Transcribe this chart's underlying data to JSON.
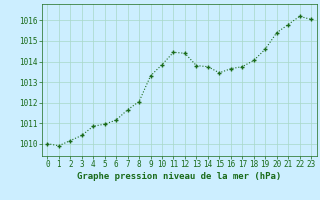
{
  "x": [
    0,
    1,
    2,
    3,
    4,
    5,
    6,
    7,
    8,
    9,
    10,
    11,
    12,
    13,
    14,
    15,
    16,
    17,
    18,
    19,
    20,
    21,
    22,
    23
  ],
  "y": [
    1010.0,
    1009.9,
    1010.15,
    1010.4,
    1010.85,
    1010.95,
    1011.15,
    1011.65,
    1012.05,
    1013.3,
    1013.85,
    1014.45,
    1014.4,
    1013.8,
    1013.75,
    1013.45,
    1013.65,
    1013.75,
    1014.05,
    1014.6,
    1015.4,
    1015.8,
    1016.2,
    1016.05
  ],
  "line_color": "#1a6b1a",
  "marker": "+",
  "marker_size": 3.5,
  "marker_linewidth": 1.0,
  "line_width": 0.8,
  "background_color": "#cceeff",
  "grid_color": "#a8d8c8",
  "xlabel": "Graphe pression niveau de la mer (hPa)",
  "xlabel_fontsize": 6.5,
  "ylabel_ticks": [
    1010,
    1011,
    1012,
    1013,
    1014,
    1015,
    1016
  ],
  "xlim": [
    -0.5,
    23.5
  ],
  "ylim": [
    1009.4,
    1016.8
  ],
  "tick_fontsize": 5.5,
  "tick_color": "#1a6b1a",
  "text_color": "#1a6b1a"
}
